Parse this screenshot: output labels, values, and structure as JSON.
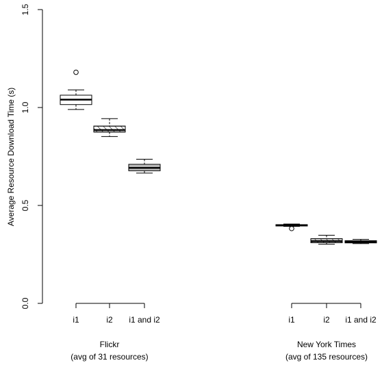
{
  "chart_data": {
    "type": "box",
    "ylabel": "Average Resource Download Time (s)",
    "ylim": [
      0.0,
      1.5
    ],
    "yticks": [
      "0.0",
      "0.5",
      "1.0",
      "1.5"
    ],
    "groups": [
      {
        "name": "Flickr",
        "subtitle": "(avg of 31 resources)",
        "boxes": [
          {
            "label": "i1",
            "fill": "#ffffff",
            "pattern": "none",
            "whisker_low": 0.99,
            "q1": 1.015,
            "median": 1.04,
            "q3": 1.063,
            "whisker_high": 1.09,
            "outliers": [
              1.18
            ]
          },
          {
            "label": "i2",
            "fill": "#ffffff",
            "pattern": "hatch",
            "whisker_low": 0.852,
            "q1": 0.875,
            "median": 0.885,
            "q3": 0.905,
            "whisker_high": 0.943,
            "outliers": []
          },
          {
            "label": "i1 and i2",
            "fill": "#bebebe",
            "pattern": "none",
            "whisker_low": 0.665,
            "q1": 0.677,
            "median": 0.692,
            "q3": 0.71,
            "whisker_high": 0.736,
            "outliers": []
          }
        ]
      },
      {
        "name": "New York Times",
        "subtitle": "(avg of 135 resources)",
        "boxes": [
          {
            "label": "i1",
            "fill": "#ffffff",
            "pattern": "none",
            "whisker_low": 0.393,
            "q1": 0.395,
            "median": 0.398,
            "q3": 0.402,
            "whisker_high": 0.405,
            "outliers": [
              0.382
            ]
          },
          {
            "label": "i2",
            "fill": "#ffffff",
            "pattern": "hatch",
            "whisker_low": 0.302,
            "q1": 0.31,
            "median": 0.318,
            "q3": 0.33,
            "whisker_high": 0.348,
            "outliers": []
          },
          {
            "label": "i1 and i2",
            "fill": "#ffffff",
            "pattern": "hatch",
            "whisker_low": 0.305,
            "q1": 0.309,
            "median": 0.314,
            "q3": 0.32,
            "whisker_high": 0.327,
            "outliers": []
          }
        ]
      }
    ]
  }
}
